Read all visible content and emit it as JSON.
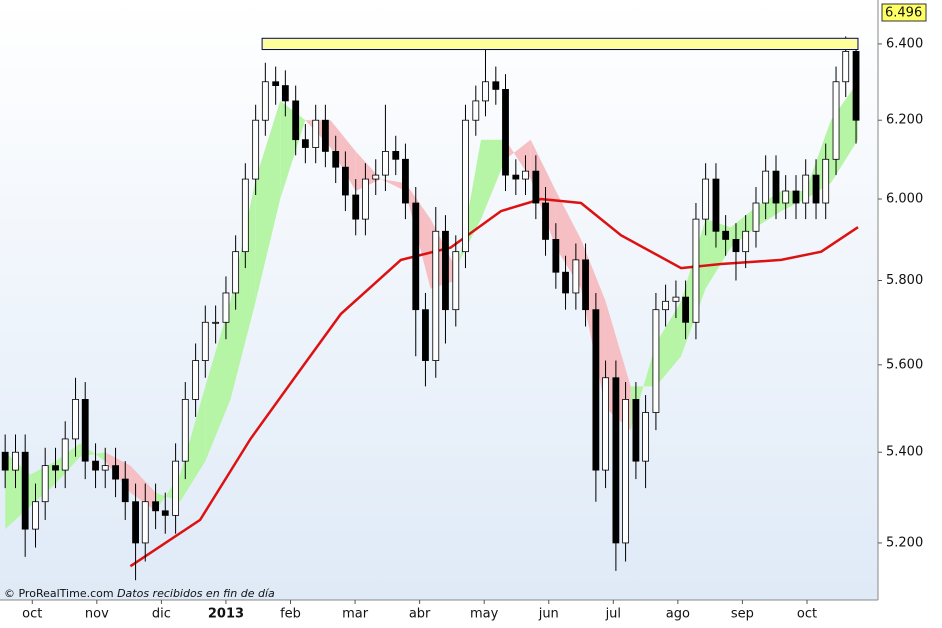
{
  "chart_data": {
    "type": "candlestick",
    "log_scale": true,
    "grid": false,
    "xlim": [
      -0.5,
      13.1
    ],
    "xticks": [
      {
        "value": 0,
        "label": "oct"
      },
      {
        "value": 1,
        "label": "nov"
      },
      {
        "value": 2,
        "label": "dic"
      },
      {
        "value": 3,
        "label": "2013"
      },
      {
        "value": 4,
        "label": "feb"
      },
      {
        "value": 5,
        "label": "mar"
      },
      {
        "value": 6,
        "label": "abr"
      },
      {
        "value": 7,
        "label": "may"
      },
      {
        "value": 8,
        "label": "jun"
      },
      {
        "value": 9,
        "label": "jul"
      },
      {
        "value": 10,
        "label": "ago"
      },
      {
        "value": 11,
        "label": "sep"
      },
      {
        "value": 12,
        "label": "oct"
      }
    ],
    "ylim": [
      5.078,
      6.518
    ],
    "yticks": [
      {
        "value": 5.2,
        "label": "5.200"
      },
      {
        "value": 5.4,
        "label": "5.400"
      },
      {
        "value": 5.6,
        "label": "5.600"
      },
      {
        "value": 5.8,
        "label": "5.800"
      },
      {
        "value": 6.0,
        "label": "6.000"
      },
      {
        "value": 6.2,
        "label": "6.200"
      },
      {
        "value": 6.4,
        "label": "6.400"
      }
    ],
    "candles": {
      "up_color": "#ffffff",
      "down_color": "#000000",
      "x": [
        -0.42,
        -0.26,
        -0.11,
        0.05,
        0.2,
        0.36,
        0.51,
        0.67,
        0.82,
        0.98,
        1.13,
        1.29,
        1.44,
        1.6,
        1.75,
        1.91,
        2.06,
        2.22,
        2.37,
        2.53,
        2.68,
        2.84,
        3.0,
        3.15,
        3.3,
        3.46,
        3.61,
        3.77,
        3.92,
        4.08,
        4.23,
        4.39,
        4.54,
        4.7,
        4.85,
        5.01,
        5.16,
        5.32,
        5.47,
        5.63,
        5.78,
        5.94,
        6.09,
        6.25,
        6.4,
        6.56,
        6.71,
        6.87,
        7.02,
        7.18,
        7.33,
        7.49,
        7.64,
        7.8,
        7.95,
        8.11,
        8.26,
        8.42,
        8.57,
        8.73,
        8.88,
        9.04,
        9.19,
        9.35,
        9.5,
        9.66,
        9.81,
        9.97,
        10.12,
        10.28,
        10.43,
        10.59,
        10.74,
        10.9,
        11.05,
        11.21,
        11.36,
        11.52,
        11.67,
        11.83,
        11.98,
        12.14,
        12.29,
        12.45,
        12.6,
        12.76
      ],
      "open": [
        5.4,
        5.36,
        5.4,
        5.23,
        5.29,
        5.37,
        5.36,
        5.43,
        5.52,
        5.38,
        5.36,
        5.37,
        5.34,
        5.29,
        5.2,
        5.29,
        5.27,
        5.26,
        5.38,
        5.52,
        5.61,
        5.7,
        5.7,
        5.77,
        5.87,
        6.05,
        6.2,
        6.3,
        6.29,
        6.25,
        6.15,
        6.13,
        6.2,
        6.12,
        6.08,
        6.01,
        5.95,
        6.05,
        6.06,
        6.12,
        6.1,
        5.99,
        5.73,
        5.61,
        5.92,
        5.73,
        5.87,
        6.2,
        6.25,
        6.3,
        6.28,
        6.06,
        6.05,
        6.07,
        5.99,
        5.9,
        5.82,
        5.77,
        5.85,
        5.73,
        5.36,
        5.57,
        5.2,
        5.52,
        5.38,
        5.49,
        5.73,
        5.75,
        5.76,
        5.7,
        5.95,
        6.05,
        5.92,
        5.9,
        5.87,
        5.92,
        5.99,
        6.07,
        5.99,
        6.02,
        5.99,
        6.06,
        5.99,
        6.1,
        6.3,
        6.38
      ],
      "high": [
        5.44,
        5.44,
        5.44,
        5.33,
        5.41,
        5.41,
        5.47,
        5.57,
        5.56,
        5.42,
        5.41,
        5.41,
        5.38,
        5.33,
        5.33,
        5.33,
        5.31,
        5.42,
        5.56,
        5.65,
        5.74,
        5.74,
        5.81,
        5.91,
        6.09,
        6.24,
        6.35,
        6.34,
        6.33,
        6.29,
        6.19,
        6.24,
        6.24,
        6.16,
        6.12,
        6.05,
        6.09,
        6.1,
        6.24,
        6.16,
        6.14,
        6.03,
        5.77,
        5.98,
        5.96,
        5.91,
        6.24,
        6.29,
        6.39,
        6.34,
        6.32,
        6.1,
        6.11,
        6.11,
        6.03,
        5.94,
        5.86,
        5.89,
        5.89,
        5.77,
        5.61,
        5.61,
        5.56,
        5.56,
        5.53,
        5.77,
        5.79,
        5.8,
        5.8,
        5.99,
        6.09,
        6.09,
        5.96,
        5.94,
        5.96,
        6.03,
        6.11,
        6.11,
        6.06,
        6.06,
        6.1,
        6.1,
        6.14,
        6.34,
        6.42,
        6.4
      ],
      "low": [
        5.32,
        5.32,
        5.17,
        5.19,
        5.25,
        5.32,
        5.32,
        5.39,
        5.34,
        5.32,
        5.32,
        5.3,
        5.25,
        5.12,
        5.16,
        5.23,
        5.22,
        5.22,
        5.34,
        5.48,
        5.57,
        5.65,
        5.66,
        5.73,
        5.83,
        6.01,
        6.16,
        6.24,
        6.21,
        6.11,
        6.09,
        6.09,
        6.08,
        6.04,
        5.97,
        5.91,
        5.91,
        6.01,
        6.02,
        6.06,
        5.95,
        5.62,
        5.55,
        5.57,
        5.65,
        5.69,
        5.83,
        6.16,
        6.21,
        6.24,
        6.02,
        6.01,
        6.01,
        5.95,
        5.86,
        5.78,
        5.73,
        5.73,
        5.69,
        5.29,
        5.32,
        5.14,
        5.16,
        5.34,
        5.32,
        5.45,
        5.69,
        5.71,
        5.66,
        5.66,
        5.91,
        5.88,
        5.86,
        5.8,
        5.83,
        5.88,
        5.95,
        5.95,
        5.95,
        5.95,
        5.95,
        5.95,
        5.95,
        6.06,
        6.26,
        6.14
      ],
      "close": [
        5.36,
        5.4,
        5.23,
        5.29,
        5.37,
        5.36,
        5.43,
        5.52,
        5.38,
        5.36,
        5.37,
        5.34,
        5.29,
        5.2,
        5.29,
        5.27,
        5.26,
        5.38,
        5.52,
        5.61,
        5.7,
        5.7,
        5.77,
        5.87,
        6.05,
        6.2,
        6.3,
        6.29,
        6.25,
        6.15,
        6.13,
        6.2,
        6.12,
        6.08,
        6.01,
        5.95,
        6.05,
        6.06,
        6.12,
        6.1,
        5.99,
        5.73,
        5.61,
        5.92,
        5.73,
        5.87,
        6.2,
        6.25,
        6.3,
        6.28,
        6.06,
        6.05,
        6.07,
        5.99,
        5.9,
        5.82,
        5.77,
        5.85,
        5.73,
        5.36,
        5.57,
        5.2,
        5.52,
        5.38,
        5.49,
        5.73,
        5.75,
        5.76,
        5.7,
        5.95,
        6.05,
        5.92,
        5.9,
        5.87,
        5.92,
        5.99,
        6.07,
        5.99,
        6.02,
        5.99,
        6.06,
        5.99,
        6.1,
        6.3,
        6.38,
        6.2
      ]
    },
    "moving_average": {
      "color": "#dd1111",
      "x": [
        1.52,
        2.6,
        3.38,
        4.16,
        4.78,
        5.71,
        6.48,
        7.26,
        7.88,
        8.5,
        9.12,
        10.05,
        10.67,
        11.6,
        12.22,
        12.79
      ],
      "values": [
        5.15,
        5.25,
        5.43,
        5.59,
        5.72,
        5.85,
        5.88,
        5.97,
        6.0,
        5.99,
        5.91,
        5.83,
        5.84,
        5.85,
        5.87,
        5.93
      ]
    },
    "cloud": {
      "up_color": "#b6f5a6",
      "down_color": "#f5bfc3",
      "x": [
        -0.42,
        -0.03,
        0.36,
        0.74,
        1.13,
        1.52,
        1.91,
        2.29,
        2.68,
        3.07,
        3.46,
        3.84,
        4.23,
        4.62,
        5.01,
        5.4,
        5.78,
        6.17,
        6.56,
        6.95,
        7.33,
        7.72,
        8.11,
        8.5,
        8.88,
        9.27,
        9.66,
        10.05,
        10.43,
        10.82,
        11.21,
        11.6,
        11.98,
        12.37,
        12.79
      ],
      "fast": [
        5.4,
        5.35,
        5.38,
        5.42,
        5.38,
        5.31,
        5.27,
        5.35,
        5.55,
        5.75,
        6.05,
        6.25,
        6.2,
        6.13,
        6.02,
        6.05,
        6.02,
        5.78,
        5.8,
        6.15,
        6.15,
        6.05,
        5.88,
        5.78,
        5.5,
        5.45,
        5.65,
        5.75,
        5.95,
        5.93,
        5.98,
        6.02,
        6.02,
        6.2,
        6.3
      ],
      "slow": [
        5.23,
        5.28,
        5.33,
        5.39,
        5.4,
        5.37,
        5.31,
        5.29,
        5.38,
        5.52,
        5.75,
        6.0,
        6.2,
        6.2,
        6.12,
        6.05,
        6.04,
        5.95,
        5.83,
        5.95,
        6.1,
        6.15,
        6.02,
        5.9,
        5.75,
        5.55,
        5.55,
        5.62,
        5.78,
        5.88,
        5.93,
        5.97,
        6.0,
        6.04,
        6.15
      ]
    },
    "resistance_zone": {
      "x": [
        3.56,
        12.79
      ],
      "y": [
        6.385,
        6.415
      ],
      "color": "#ffff99"
    },
    "last_price": 6.496,
    "last_price_color": "#ffff66",
    "source": "© ProRealTime.com",
    "note": "Datos recibidos en fin de día"
  }
}
